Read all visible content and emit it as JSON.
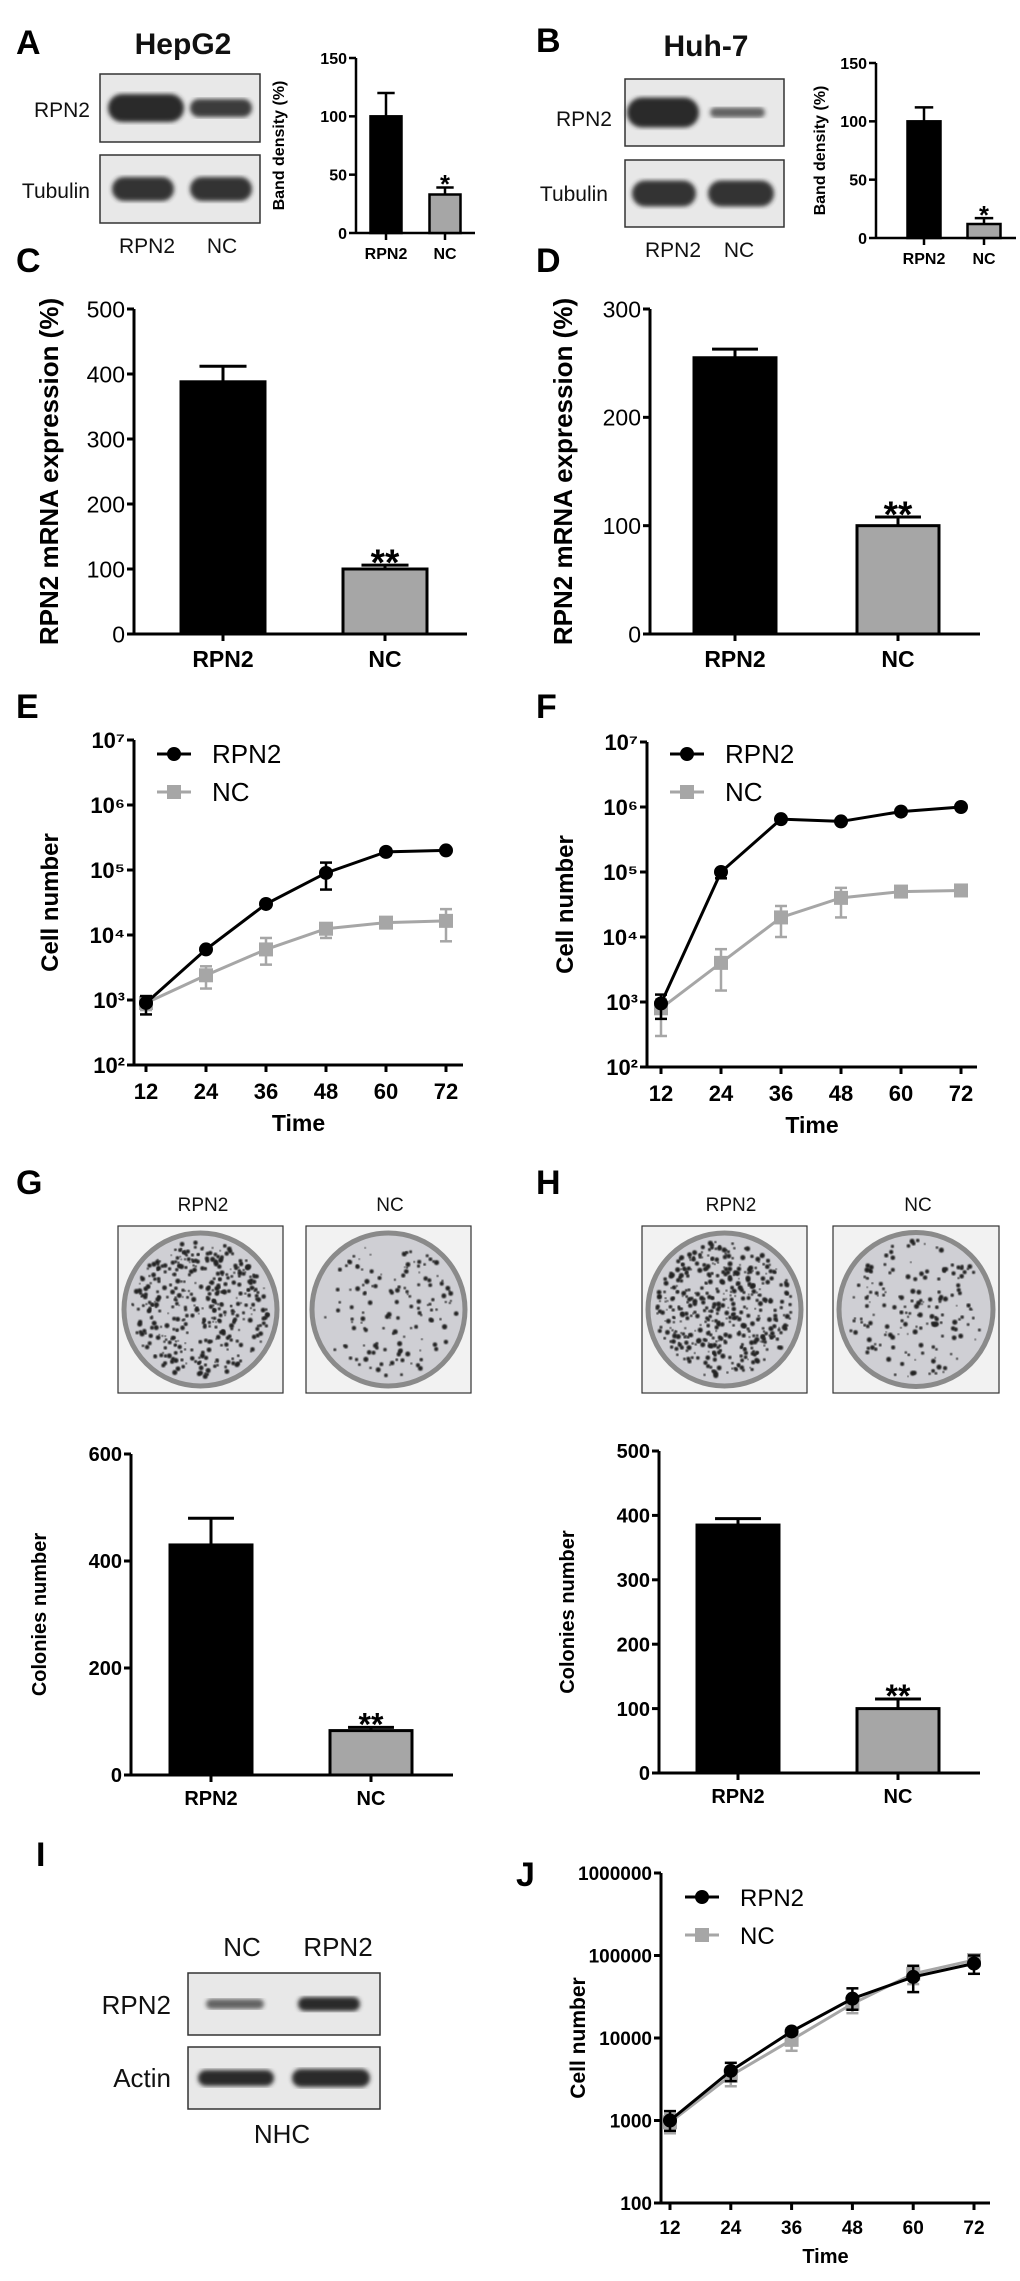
{
  "panels": {
    "A": "A",
    "B": "B",
    "C": "C",
    "D": "D",
    "E": "E",
    "F": "F",
    "G": "G",
    "H": "H",
    "I": "I",
    "J": "J"
  },
  "blots": {
    "A": {
      "title": "HepG2",
      "rows": [
        "RPN2",
        "Tubulin"
      ],
      "lanes": [
        "RPN2",
        "NC"
      ]
    },
    "B": {
      "title": "Huh-7",
      "rows": [
        "RPN2",
        "Tubulin"
      ],
      "lanes": [
        "RPN2",
        "NC"
      ]
    },
    "I": {
      "rows": [
        "RPN2",
        "Actin"
      ],
      "lanes": [
        "NC",
        "RPN2"
      ],
      "footer": "NHC"
    }
  },
  "plates": {
    "G": {
      "labels": [
        "RPN2",
        "NC"
      ]
    },
    "H": {
      "labels": [
        "RPN2",
        "NC"
      ]
    }
  },
  "colors": {
    "rpn2": "#000000",
    "nc": "#a6a6a6",
    "axis": "#000000"
  },
  "chart_data": [
    {
      "id": "A",
      "type": "bar",
      "title": "",
      "xlabel": "",
      "ylabel": "Band density (%)",
      "ylim": [
        0,
        150
      ],
      "yticks": [
        0,
        50,
        100,
        150
      ],
      "categories": [
        "RPN2",
        "NC"
      ],
      "values": [
        100,
        33
      ],
      "errors": [
        20,
        6
      ],
      "annotations": [
        "",
        "*"
      ]
    },
    {
      "id": "B",
      "type": "bar",
      "title": "",
      "xlabel": "",
      "ylabel": "Band density (%)",
      "ylim": [
        0,
        150
      ],
      "yticks": [
        0,
        50,
        100,
        150
      ],
      "categories": [
        "RPN2",
        "NC"
      ],
      "values": [
        100,
        12
      ],
      "errors": [
        12,
        5
      ],
      "annotations": [
        "",
        "*"
      ]
    },
    {
      "id": "C",
      "type": "bar",
      "title": "",
      "xlabel": "",
      "ylabel": "RPN2 mRNA expression (%)",
      "ylim": [
        0,
        500
      ],
      "yticks": [
        0,
        100,
        200,
        300,
        400,
        500
      ],
      "categories": [
        "RPN2",
        "NC"
      ],
      "values": [
        388,
        100
      ],
      "errors": [
        24,
        6
      ],
      "annotations": [
        "",
        "**"
      ]
    },
    {
      "id": "D",
      "type": "bar",
      "title": "",
      "xlabel": "",
      "ylabel": "RPN2 mRNA expression (%)",
      "ylim": [
        0,
        300
      ],
      "yticks": [
        0,
        100,
        200,
        300
      ],
      "categories": [
        "RPN2",
        "NC"
      ],
      "values": [
        255,
        100
      ],
      "errors": [
        8,
        8
      ],
      "annotations": [
        "",
        "**"
      ]
    },
    {
      "id": "E",
      "type": "line",
      "title": "",
      "xlabel": "Time",
      "ylabel": "Cell number",
      "yscale": "log",
      "ylim": [
        100,
        10000000
      ],
      "yticks": [
        100,
        1000,
        10000,
        100000,
        1000000,
        10000000
      ],
      "ytick_labels": [
        "10²",
        "10³",
        "10⁴",
        "10⁵",
        "10⁶",
        "10⁷"
      ],
      "x": [
        12,
        24,
        36,
        48,
        60,
        72
      ],
      "legend": "top-left",
      "series": [
        {
          "name": "RPN2",
          "values": [
            900,
            6000,
            30000,
            90000,
            190000,
            200000
          ],
          "err_low": [
            600,
            5500,
            28000,
            50000,
            170000,
            190000
          ],
          "err_high": [
            1150,
            6500,
            32000,
            130000,
            210000,
            210000
          ]
        },
        {
          "name": "NC",
          "values": [
            900,
            2400,
            6000,
            12500,
            15500,
            16500
          ],
          "err_low": [
            700,
            1500,
            3500,
            9000,
            14000,
            8000
          ],
          "err_high": [
            1100,
            3300,
            9000,
            15000,
            17000,
            25000
          ]
        }
      ]
    },
    {
      "id": "F",
      "type": "line",
      "title": "",
      "xlabel": "Time",
      "ylabel": "Cell number",
      "yscale": "log",
      "ylim": [
        100,
        10000000
      ],
      "yticks": [
        100,
        1000,
        10000,
        100000,
        1000000,
        10000000
      ],
      "ytick_labels": [
        "10²",
        "10³",
        "10⁴",
        "10⁵",
        "10⁶",
        "10⁷"
      ],
      "x": [
        12,
        24,
        36,
        48,
        60,
        72
      ],
      "legend": "top-left",
      "series": [
        {
          "name": "RPN2",
          "values": [
            950,
            100000,
            650000,
            600000,
            850000,
            1000000
          ],
          "err_low": [
            550,
            80000,
            600000,
            550000,
            800000,
            950000
          ],
          "err_high": [
            1300,
            110000,
            700000,
            650000,
            900000,
            1050000
          ]
        },
        {
          "name": "NC",
          "values": [
            800,
            4000,
            20000,
            40000,
            50000,
            52000
          ],
          "err_low": [
            300,
            1500,
            10000,
            20000,
            46000,
            47000
          ],
          "err_high": [
            1100,
            6500,
            30000,
            57000,
            54000,
            57000
          ]
        }
      ]
    },
    {
      "id": "G",
      "type": "bar",
      "title": "",
      "xlabel": "",
      "ylabel": "Colonies number",
      "ylim": [
        0,
        600
      ],
      "yticks": [
        0,
        200,
        400,
        600
      ],
      "categories": [
        "RPN2",
        "NC"
      ],
      "values": [
        430,
        83
      ],
      "errors": [
        50,
        6
      ],
      "annotations": [
        "",
        "**"
      ]
    },
    {
      "id": "H",
      "type": "bar",
      "title": "",
      "xlabel": "",
      "ylabel": "Colonies number",
      "ylim": [
        0,
        500
      ],
      "yticks": [
        0,
        100,
        200,
        300,
        400,
        500
      ],
      "categories": [
        "RPN2",
        "NC"
      ],
      "values": [
        385,
        100
      ],
      "errors": [
        10,
        15
      ],
      "annotations": [
        "",
        "**"
      ]
    },
    {
      "id": "J",
      "type": "line",
      "title": "",
      "xlabel": "Time",
      "ylabel": "Cell number",
      "yscale": "log",
      "ylim": [
        100,
        1000000
      ],
      "yticks": [
        100,
        1000,
        10000,
        100000,
        1000000
      ],
      "ytick_labels": [
        "100",
        "1000",
        "10000",
        "100000",
        "1000000"
      ],
      "x": [
        12,
        24,
        36,
        48,
        60,
        72
      ],
      "legend": "top-left",
      "series": [
        {
          "name": "RPN2",
          "values": [
            1000,
            4000,
            12000,
            30000,
            55000,
            80000
          ],
          "err_low": [
            750,
            3000,
            11000,
            22000,
            36000,
            60000
          ],
          "err_high": [
            1300,
            5000,
            13000,
            40000,
            75000,
            100000
          ]
        },
        {
          "name": "NC",
          "values": [
            950,
            3500,
            9500,
            26000,
            60000,
            88000
          ],
          "err_low": [
            700,
            2600,
            7000,
            20000,
            45000,
            75000
          ],
          "err_high": [
            1200,
            4400,
            12000,
            32000,
            75000,
            100000
          ]
        }
      ]
    }
  ]
}
